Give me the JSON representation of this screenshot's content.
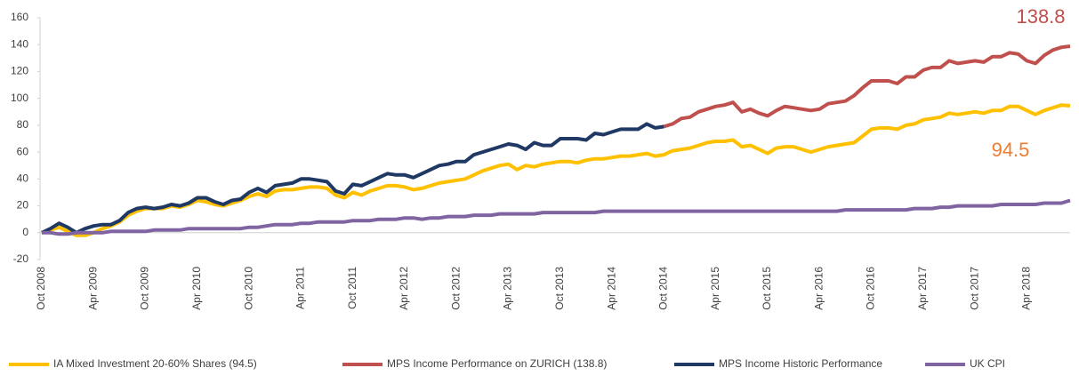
{
  "chart_data": {
    "type": "line",
    "categories": [
      "Oct 2008",
      null,
      null,
      null,
      null,
      null,
      "Apr 2009",
      null,
      null,
      null,
      null,
      null,
      "Oct 2009",
      null,
      null,
      null,
      null,
      null,
      "Apr 2010",
      null,
      null,
      null,
      null,
      null,
      "Oct 2010",
      null,
      null,
      null,
      null,
      null,
      "Apr 2011",
      null,
      null,
      null,
      null,
      null,
      "Oct 2011",
      null,
      null,
      null,
      null,
      null,
      "Apr 2012",
      null,
      null,
      null,
      null,
      null,
      "Oct 2012",
      null,
      null,
      null,
      null,
      null,
      "Apr 2013",
      null,
      null,
      null,
      null,
      null,
      "Oct 2013",
      null,
      null,
      null,
      null,
      null,
      "Apr 2014",
      null,
      null,
      null,
      null,
      null,
      "Oct 2014",
      null,
      null,
      null,
      null,
      null,
      "Apr 2015",
      null,
      null,
      null,
      null,
      null,
      "Oct 2015",
      null,
      null,
      null,
      null,
      null,
      "Apr 2016",
      null,
      null,
      null,
      null,
      null,
      "Oct 2016",
      null,
      null,
      null,
      null,
      null,
      "Apr 2017",
      null,
      null,
      null,
      null,
      null,
      "Oct 2017",
      null,
      null,
      null,
      null,
      null,
      "Apr 2018",
      null,
      null,
      null,
      null,
      null
    ],
    "series": [
      {
        "name": "IA Mixed Investment 20-60% Shares (94.5)",
        "color": "#ffc000",
        "values": [
          0,
          2,
          4,
          1,
          -2,
          -2,
          0,
          3,
          5,
          8,
          13,
          16,
          18,
          18,
          18,
          20,
          19,
          21,
          24,
          23,
          21,
          20,
          22,
          24,
          27,
          29,
          27,
          31,
          32,
          32,
          33,
          34,
          34,
          33,
          28,
          26,
          30,
          28,
          31,
          33,
          35,
          35,
          34,
          32,
          33,
          35,
          37,
          38,
          39,
          40,
          43,
          46,
          48,
          50,
          51,
          47,
          50,
          49,
          51,
          52,
          53,
          53,
          52,
          54,
          55,
          55,
          56,
          57,
          57,
          58,
          59,
          57,
          58,
          61,
          62,
          63,
          65,
          67,
          68,
          68,
          69,
          64,
          65,
          62,
          59,
          63,
          64,
          64,
          62,
          60,
          62,
          64,
          65,
          66,
          67,
          72,
          77,
          78,
          78,
          77,
          80,
          81,
          84,
          85,
          86,
          89,
          88,
          89,
          90,
          89,
          91,
          91,
          94,
          94,
          91,
          88,
          91,
          93,
          95,
          94.5
        ]
      },
      {
        "name": "MPS Income Performance on ZURICH (138.8)",
        "color": "#c0504d",
        "values": [
          null,
          null,
          null,
          null,
          null,
          null,
          null,
          null,
          null,
          null,
          null,
          null,
          null,
          null,
          null,
          null,
          null,
          null,
          null,
          null,
          null,
          null,
          null,
          null,
          null,
          null,
          null,
          null,
          null,
          null,
          null,
          null,
          null,
          null,
          null,
          null,
          null,
          null,
          null,
          null,
          null,
          null,
          null,
          null,
          null,
          null,
          null,
          null,
          null,
          null,
          null,
          null,
          null,
          null,
          null,
          null,
          null,
          null,
          null,
          null,
          null,
          null,
          null,
          null,
          null,
          null,
          null,
          null,
          null,
          null,
          null,
          null,
          79,
          81,
          85,
          86,
          90,
          92,
          94,
          95,
          97,
          90,
          92,
          89,
          87,
          91,
          94,
          93,
          92,
          91,
          92,
          96,
          97,
          98,
          102,
          108,
          113,
          113,
          113,
          111,
          116,
          116,
          121,
          123,
          123,
          128,
          126,
          127,
          128,
          127,
          131,
          131,
          134,
          133,
          128,
          126,
          132,
          136,
          138,
          138.8
        ]
      },
      {
        "name": "MPS Income Historic Performance",
        "color": "#1f3864",
        "values": [
          0,
          3,
          7,
          4,
          0,
          3,
          5,
          6,
          6,
          9,
          15,
          18,
          19,
          18,
          19,
          21,
          20,
          22,
          26,
          26,
          23,
          21,
          24,
          25,
          30,
          33,
          30,
          35,
          36,
          37,
          40,
          40,
          39,
          38,
          31,
          29,
          36,
          35,
          38,
          41,
          44,
          43,
          43,
          41,
          44,
          47,
          50,
          51,
          53,
          53,
          58,
          60,
          62,
          64,
          66,
          65,
          62,
          67,
          65,
          65,
          70,
          70,
          70,
          69,
          74,
          73,
          75,
          77,
          77,
          77,
          81,
          78,
          79,
          null,
          null,
          null,
          null,
          null,
          null,
          null,
          null,
          null,
          null,
          null,
          null,
          null,
          null,
          null,
          null,
          null,
          null,
          null,
          null,
          null,
          null,
          null,
          null,
          null,
          null,
          null,
          null,
          null,
          null,
          null,
          null,
          null,
          null,
          null,
          null,
          null,
          null,
          null,
          null,
          null,
          null,
          null,
          null,
          null,
          null,
          null
        ]
      },
      {
        "name": "UK CPI",
        "color": "#8064a2",
        "values": [
          0,
          0,
          -1,
          -1,
          0,
          0,
          0,
          0,
          1,
          1,
          1,
          1,
          1,
          2,
          2,
          2,
          2,
          3,
          3,
          3,
          3,
          3,
          3,
          3,
          4,
          4,
          5,
          6,
          6,
          6,
          7,
          7,
          8,
          8,
          8,
          8,
          9,
          9,
          9,
          10,
          10,
          10,
          11,
          11,
          10,
          11,
          11,
          12,
          12,
          12,
          13,
          13,
          13,
          14,
          14,
          14,
          14,
          14,
          15,
          15,
          15,
          15,
          15,
          15,
          15,
          16,
          16,
          16,
          16,
          16,
          16,
          16,
          16,
          16,
          16,
          16,
          16,
          16,
          16,
          16,
          16,
          16,
          16,
          16,
          16,
          16,
          16,
          16,
          16,
          16,
          16,
          16,
          16,
          17,
          17,
          17,
          17,
          17,
          17,
          17,
          17,
          18,
          18,
          18,
          19,
          19,
          20,
          20,
          20,
          20,
          20,
          21,
          21,
          21,
          21,
          21,
          22,
          22,
          22,
          24
        ]
      }
    ],
    "annotations": [
      {
        "text": "138.8",
        "color": "#c0504d"
      },
      {
        "text": "94.5",
        "color": "#ed7d31"
      }
    ],
    "ylim": [
      -20,
      160
    ],
    "yticks": [
      -20,
      0,
      20,
      40,
      60,
      80,
      100,
      120,
      140,
      160
    ],
    "grid": false,
    "legend": "bottom"
  }
}
